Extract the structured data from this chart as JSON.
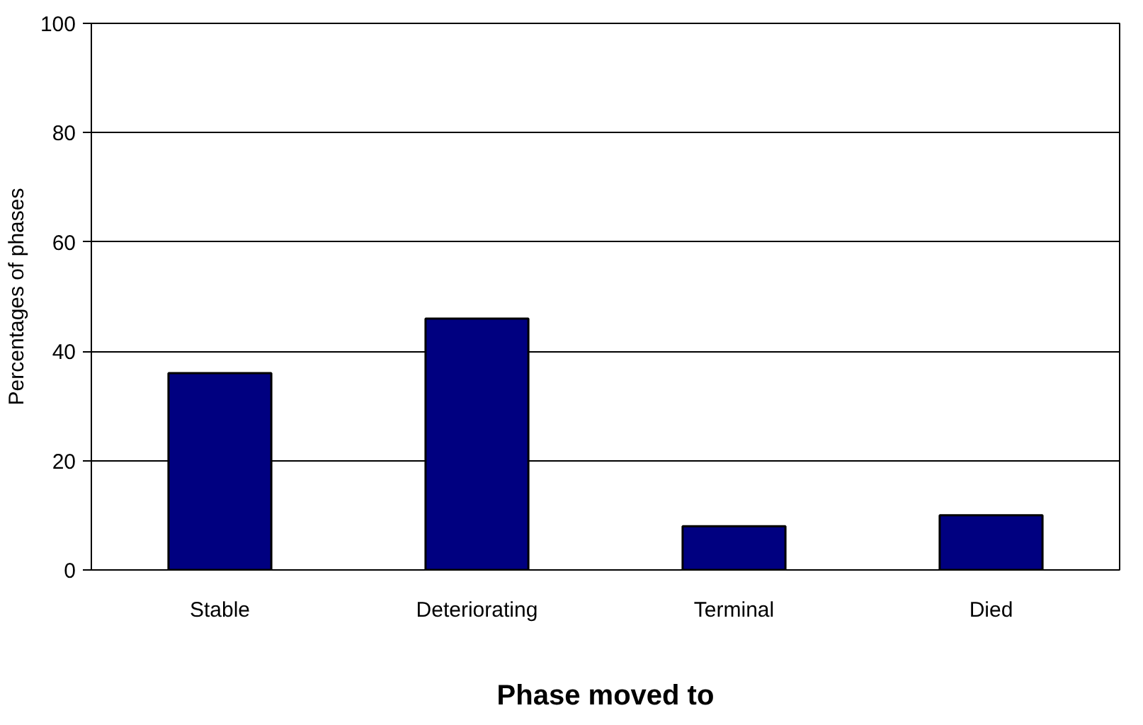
{
  "chart_data": {
    "type": "bar",
    "xlabel": "Phase moved to",
    "ylabel": "Percentages of phases",
    "categories": [
      "Stable",
      "Deteriorating",
      "Terminal",
      "Died"
    ],
    "values": [
      36,
      46,
      8,
      10
    ],
    "color": "#000080",
    "ylim": [
      0,
      100
    ],
    "yticks": [
      0,
      20,
      40,
      60,
      80,
      100
    ],
    "grid": "y"
  }
}
